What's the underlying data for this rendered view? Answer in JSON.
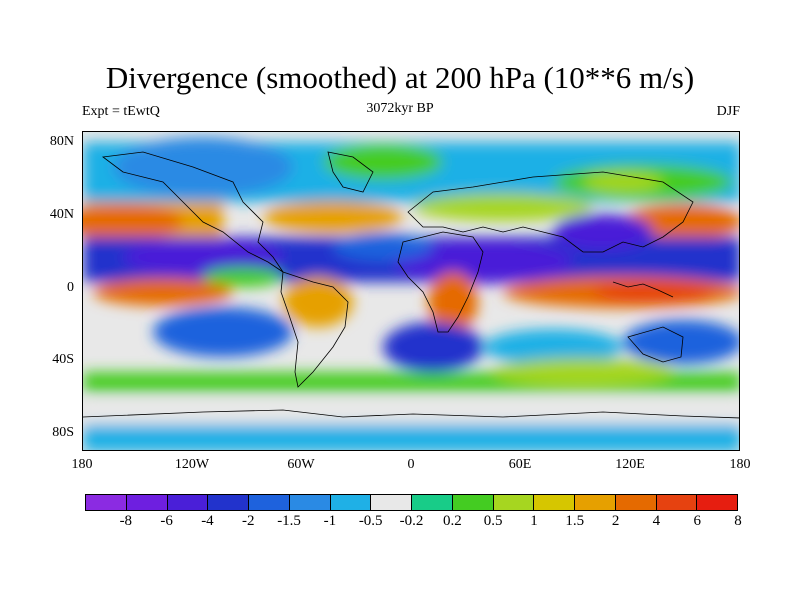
{
  "title": "Divergence (smoothed) at 200 hPa (10**6 m/s)",
  "subtitle_left": "Expt = tEwtQ",
  "subtitle_center": "3072kyr BP",
  "subtitle_right": "DJF",
  "y_ticks": [
    "80N",
    "40N",
    "0",
    "40S",
    "80S"
  ],
  "x_ticks": [
    "180",
    "120W",
    "60W",
    "0",
    "60E",
    "120E",
    "180"
  ],
  "colorbar": {
    "colors": [
      "#8b2be2",
      "#6e1fe0",
      "#4a1fd8",
      "#2233cc",
      "#1e62dd",
      "#2a8ae4",
      "#1fb0e6",
      "#e8e8e8",
      "#18cc88",
      "#44cc22",
      "#a6d620",
      "#d6c600",
      "#e6a000",
      "#e56a00",
      "#e64210",
      "#e61e10"
    ],
    "labels": [
      "-8",
      "-6",
      "-4",
      "-2",
      "-1.5",
      "-1",
      "-0.5",
      "-0.2",
      "0.2",
      "0.5",
      "1",
      "1.5",
      "2",
      "4",
      "6",
      "8"
    ]
  }
}
